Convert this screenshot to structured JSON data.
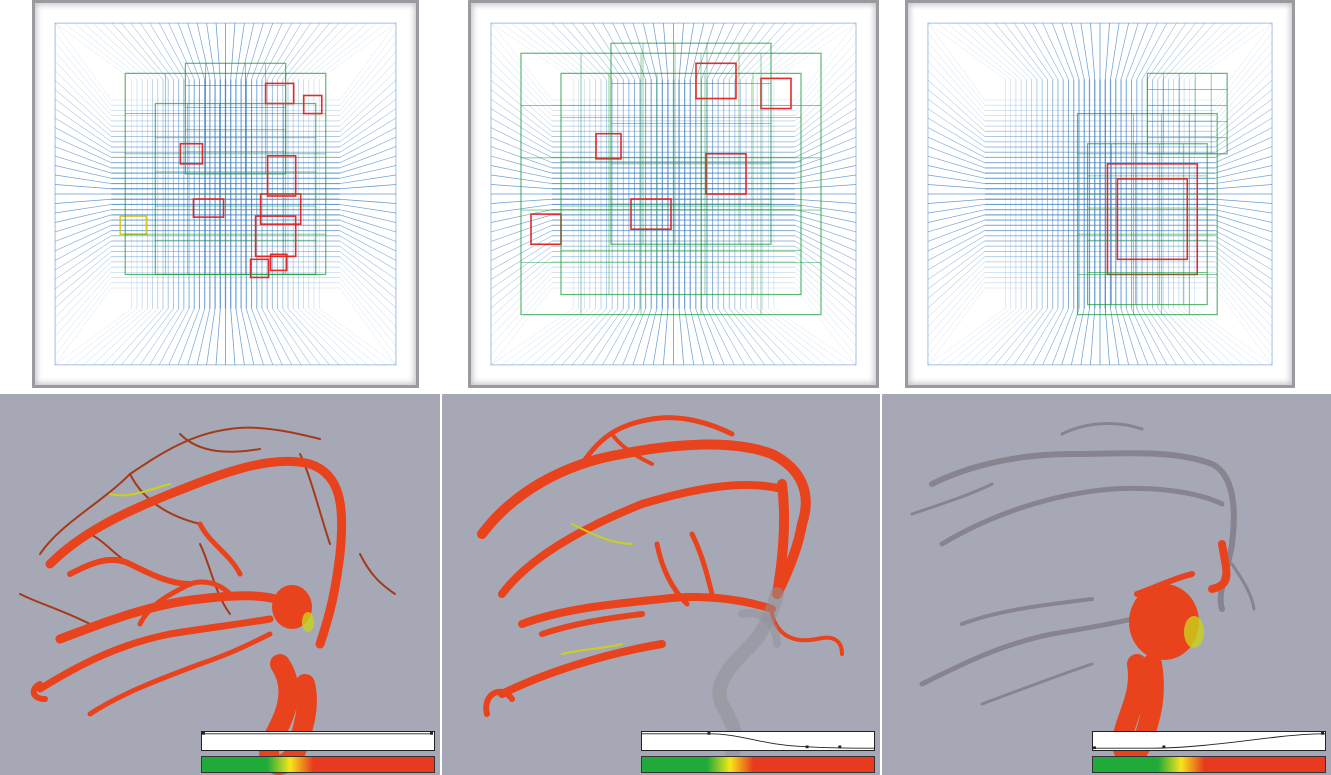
{
  "figure": {
    "grid_panels": [
      {
        "name": "deformed-grid-view-1",
        "highlight_colors": [
          "#1a9a3a",
          "#e02020"
        ]
      },
      {
        "name": "deformed-grid-view-2",
        "highlight_colors": [
          "#1a9a3a",
          "#e02020"
        ]
      },
      {
        "name": "deformed-grid-view-3",
        "highlight_colors": [
          "#1a9a3a",
          "#e02020"
        ]
      }
    ],
    "vessel_panels": [
      {
        "name": "vessel-render-1",
        "transfer_function": {
          "colors": [
            "#1faa3a",
            "#f7e51a",
            "#e83a1e"
          ]
        }
      },
      {
        "name": "vessel-render-2",
        "transfer_function": {
          "colors": [
            "#1faa3a",
            "#f7e51a",
            "#e83a1e"
          ]
        }
      },
      {
        "name": "vessel-render-3",
        "transfer_function": {
          "colors": [
            "#1faa3a",
            "#f7e51a",
            "#e83a1e"
          ]
        }
      }
    ],
    "colors": {
      "grid_line": "#3b7fc4",
      "vessel_fill": "#e8431c",
      "vessel_highlight": "#b8d21a",
      "background_vessel": "#a7a8b6"
    }
  }
}
